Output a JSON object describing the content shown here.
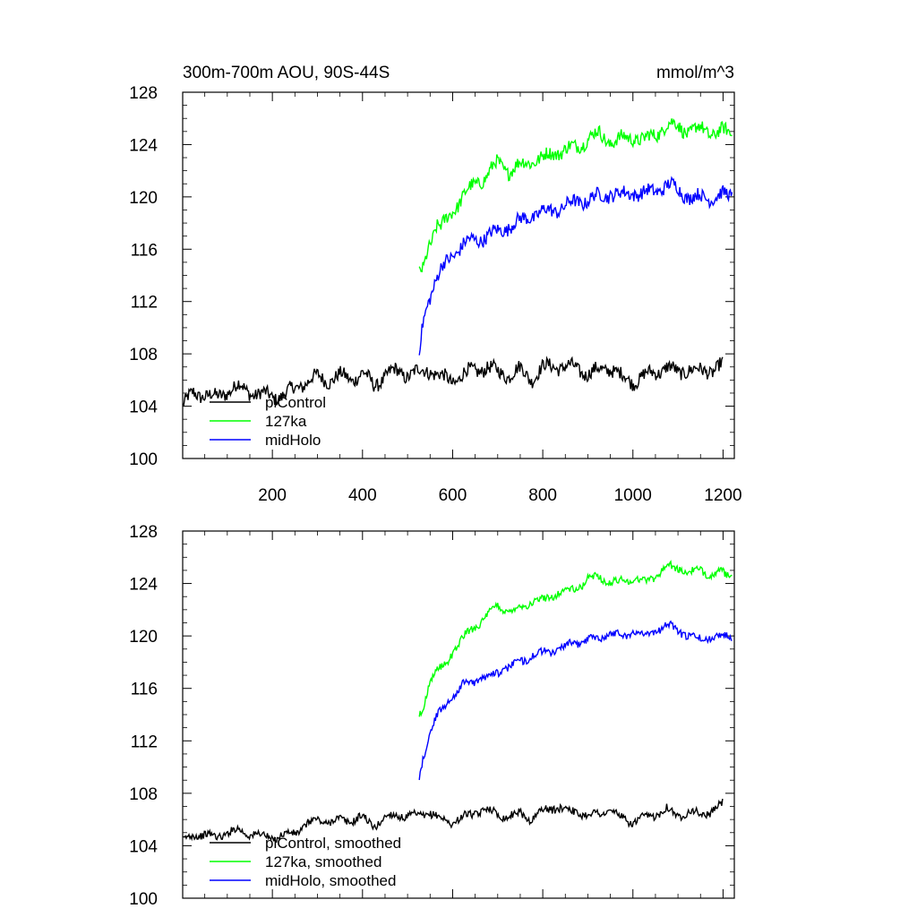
{
  "chart_data": [
    {
      "type": "line",
      "title": "300m-700m AOU, 90S-44S",
      "units": "mmol/m^3",
      "xlim": [
        1,
        1225
      ],
      "ylim": [
        100,
        128
      ],
      "xticks": [
        200,
        400,
        600,
        800,
        1000,
        1200
      ],
      "xtick_labels": [
        "200",
        "400",
        "600",
        "800",
        "1000",
        "1200"
      ],
      "yticks": [
        100,
        104,
        108,
        112,
        116,
        120,
        124,
        128
      ],
      "ytick_labels": [
        "100",
        "104",
        "108",
        "112",
        "116",
        "120",
        "124",
        "128"
      ],
      "legend": [
        "piControl",
        "127ka",
        "midHolo"
      ],
      "legend_position": "bottom-left",
      "series": [
        {
          "name": "piControl",
          "color": "#000000",
          "x": [
            1,
            25,
            50,
            75,
            100,
            125,
            150,
            175,
            200,
            225,
            250,
            275,
            300,
            325,
            350,
            375,
            400,
            425,
            450,
            475,
            500,
            525,
            550,
            575,
            600,
            625,
            650,
            675,
            700,
            725,
            750,
            775,
            800,
            825,
            850,
            875,
            900,
            925,
            950,
            975,
            1000,
            1025,
            1050,
            1075,
            1100,
            1125,
            1150,
            1175,
            1200
          ],
          "values": [
            104.0,
            105.0,
            104.9,
            104.6,
            105.2,
            105.5,
            105.1,
            104.9,
            104.7,
            104.9,
            105.3,
            105.9,
            106.2,
            106.0,
            106.3,
            106.1,
            106.5,
            105.6,
            106.3,
            106.7,
            106.4,
            106.6,
            106.8,
            106.2,
            105.9,
            106.5,
            106.7,
            107.0,
            106.6,
            106.4,
            106.8,
            106.1,
            106.9,
            107.1,
            107.0,
            106.9,
            106.5,
            106.7,
            107.0,
            106.2,
            105.9,
            106.3,
            106.6,
            107.0,
            106.5,
            106.9,
            106.6,
            106.8,
            107.2
          ]
        },
        {
          "name": "127ka",
          "color": "#00ff00",
          "x": [
            526,
            535,
            545,
            555,
            565,
            575,
            590,
            600,
            625,
            650,
            675,
            700,
            725,
            750,
            775,
            800,
            825,
            850,
            875,
            900,
            925,
            950,
            975,
            1000,
            1025,
            1050,
            1075,
            1100,
            1125,
            1150,
            1175,
            1200,
            1220
          ],
          "values": [
            114.0,
            114.5,
            116.2,
            117.0,
            117.8,
            117.6,
            118.4,
            119.0,
            120.1,
            121.0,
            121.6,
            122.6,
            122.0,
            122.4,
            122.8,
            122.9,
            123.4,
            123.6,
            123.8,
            124.5,
            124.8,
            124.2,
            124.4,
            124.6,
            124.3,
            124.8,
            125.5,
            125.4,
            125.0,
            125.2,
            124.9,
            125.0,
            124.8
          ]
        },
        {
          "name": "midHolo",
          "color": "#0000ff",
          "x": [
            526,
            535,
            545,
            555,
            565,
            575,
            590,
            600,
            625,
            650,
            675,
            700,
            725,
            750,
            775,
            800,
            825,
            850,
            875,
            900,
            925,
            950,
            975,
            1000,
            1025,
            1050,
            1075,
            1100,
            1125,
            1150,
            1175,
            1200,
            1220
          ],
          "values": [
            108.0,
            110.5,
            112.0,
            113.0,
            113.8,
            114.4,
            115.1,
            115.6,
            116.4,
            116.7,
            117.0,
            117.3,
            117.8,
            118.1,
            118.6,
            118.8,
            119.0,
            119.3,
            119.6,
            119.8,
            120.0,
            120.3,
            120.1,
            120.4,
            120.2,
            120.5,
            120.9,
            120.6,
            120.0,
            119.9,
            120.0,
            120.1,
            120.1
          ]
        }
      ]
    },
    {
      "type": "line",
      "xlim": [
        1,
        1225
      ],
      "ylim": [
        100,
        128
      ],
      "xticks": [
        200,
        400,
        600,
        800,
        1000,
        1200
      ],
      "yticks": [
        100,
        104,
        108,
        112,
        116,
        120,
        124,
        128
      ],
      "ytick_labels": [
        "100",
        "104",
        "108",
        "112",
        "116",
        "120",
        "124",
        "128"
      ],
      "legend": [
        "piControl, smoothed",
        "127ka, smoothed",
        "midHolo, smoothed"
      ],
      "legend_position": "bottom-left",
      "series": [
        {
          "name": "piControl, smoothed",
          "color": "#000000",
          "x": [
            1,
            25,
            50,
            75,
            100,
            125,
            150,
            175,
            200,
            225,
            250,
            275,
            300,
            325,
            350,
            375,
            400,
            425,
            450,
            475,
            500,
            525,
            550,
            575,
            600,
            625,
            650,
            675,
            700,
            725,
            750,
            775,
            800,
            825,
            850,
            875,
            900,
            925,
            950,
            975,
            1000,
            1025,
            1050,
            1075,
            1100,
            1125,
            1150,
            1175,
            1200
          ],
          "values": [
            104.3,
            104.9,
            104.8,
            104.7,
            105.0,
            105.2,
            104.9,
            104.8,
            104.6,
            104.8,
            105.0,
            105.6,
            106.0,
            105.8,
            106.0,
            105.9,
            106.2,
            105.5,
            106.1,
            106.4,
            106.2,
            106.3,
            106.5,
            106.0,
            105.8,
            106.2,
            106.5,
            106.8,
            106.4,
            106.2,
            106.5,
            106.0,
            106.7,
            106.9,
            106.8,
            106.6,
            106.3,
            106.5,
            106.7,
            106.1,
            105.8,
            106.1,
            106.4,
            106.8,
            106.3,
            106.6,
            106.4,
            106.6,
            107.2
          ]
        },
        {
          "name": "127ka, smoothed",
          "color": "#00ff00",
          "x": [
            526,
            535,
            545,
            555,
            565,
            575,
            590,
            600,
            625,
            650,
            675,
            700,
            725,
            750,
            775,
            800,
            825,
            850,
            875,
            900,
            925,
            950,
            975,
            1000,
            1025,
            1050,
            1075,
            1100,
            1125,
            1150,
            1175,
            1200,
            1220
          ],
          "values": [
            114.0,
            114.5,
            116.0,
            116.8,
            117.4,
            117.5,
            118.2,
            118.8,
            119.9,
            120.8,
            121.4,
            122.4,
            121.8,
            122.2,
            122.6,
            122.7,
            123.2,
            123.4,
            123.6,
            124.3,
            124.6,
            124.0,
            124.2,
            124.4,
            124.1,
            124.6,
            125.3,
            125.2,
            124.8,
            125.0,
            124.7,
            124.8,
            124.5
          ]
        },
        {
          "name": "midHolo, smoothed",
          "color": "#0000ff",
          "x": [
            526,
            535,
            545,
            555,
            565,
            575,
            590,
            600,
            625,
            650,
            675,
            700,
            725,
            750,
            775,
            800,
            825,
            850,
            875,
            900,
            925,
            950,
            975,
            1000,
            1025,
            1050,
            1075,
            1100,
            1125,
            1150,
            1175,
            1200,
            1220
          ],
          "values": [
            109.0,
            110.8,
            112.2,
            113.1,
            113.8,
            114.3,
            115.0,
            115.5,
            116.3,
            116.6,
            116.9,
            117.2,
            117.7,
            118.0,
            118.5,
            118.7,
            118.9,
            119.2,
            119.5,
            119.7,
            119.9,
            120.2,
            120.0,
            120.3,
            120.1,
            120.4,
            120.8,
            120.5,
            119.9,
            119.8,
            119.9,
            120.0,
            120.1
          ]
        }
      ]
    }
  ]
}
